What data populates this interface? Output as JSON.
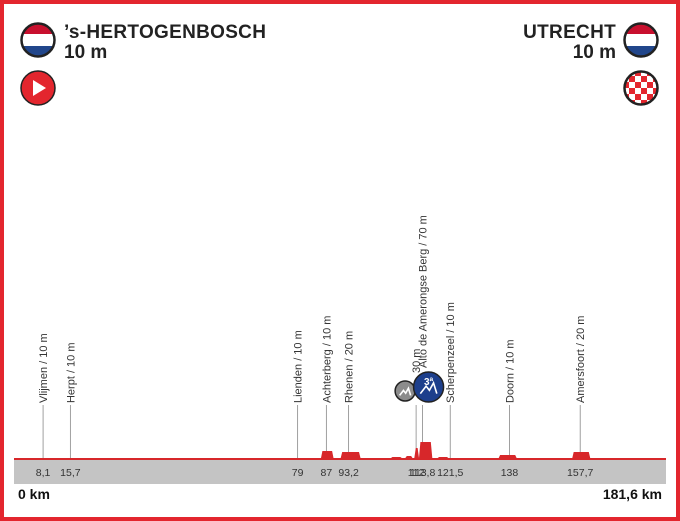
{
  "start": {
    "name": "’s-HERTOGENBOSCH",
    "altitude": "10 m",
    "flag_colors": [
      "#c8102e",
      "#ffffff",
      "#21468b"
    ],
    "badge": "start-icon"
  },
  "finish": {
    "name": "UTRECHT",
    "altitude": "10 m",
    "flag_colors": [
      "#c8102e",
      "#ffffff",
      "#21468b"
    ],
    "badge": "finish-icon"
  },
  "distance": {
    "start": "0 km",
    "end": "181,6 km"
  },
  "colors": {
    "accent": "#e3262e",
    "profile_fill": "#d7272a",
    "ground": "#c4c4c4",
    "kom_badge": "#1d3f8c",
    "sprint_badge": "#8c8c8c"
  },
  "waypoints": [
    {
      "label": "Vlijmen / 10 m",
      "km": "8,1",
      "km_value": 8.1
    },
    {
      "label": "Herpt / 10 m",
      "km": "15,7",
      "km_value": 15.7
    },
    {
      "label": "Lienden / 10 m",
      "km": "79",
      "km_value": 79
    },
    {
      "label": "Achterberg / 10 m",
      "km": "87",
      "km_value": 87
    },
    {
      "label": "Rhenen / 20 m",
      "km": "93,2",
      "km_value": 93.2
    },
    {
      "label": "30 m",
      "km": "112",
      "km_value": 112,
      "icon": "sprint-icon"
    },
    {
      "label": "Alto de Amerongse Berg / 70 m",
      "km": "113,8",
      "km_value": 113.8,
      "icon": "kom-icon",
      "icon_text": "3ª"
    },
    {
      "label": "Scherpenzeel / 10 m",
      "km": "121,5",
      "km_value": 121.5
    },
    {
      "label": "Doorn / 10 m",
      "km": "138",
      "km_value": 138
    },
    {
      "label": "Amersfoort / 20 m",
      "km": "157,7",
      "km_value": 157.7
    }
  ]
}
